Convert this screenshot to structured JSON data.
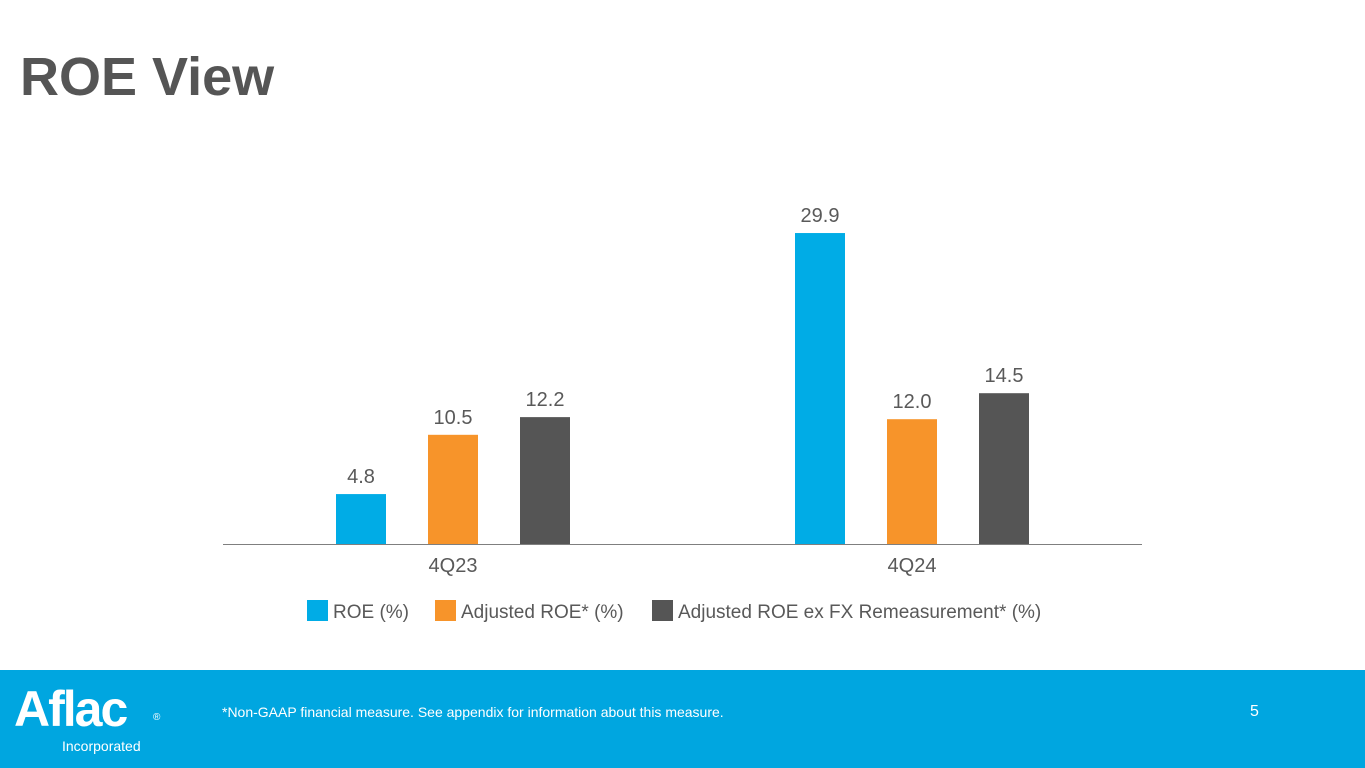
{
  "slide": {
    "title": "ROE View",
    "footnote": "*Non-GAAP financial measure. See appendix for information about this measure.",
    "page_number": "5",
    "logo": {
      "wordmark": "Aflac",
      "registered": "®",
      "subtitle": "Incorporated"
    }
  },
  "colors": {
    "title": "#555555",
    "footer": "#00a6e0",
    "axis": "#7f7f7f",
    "labels": "#595959"
  },
  "chart_data": {
    "type": "bar",
    "title": "",
    "xlabel": "",
    "ylabel": "",
    "categories": [
      "4Q23",
      "4Q24"
    ],
    "ylim": [
      0,
      33
    ],
    "grid": false,
    "legend_position": "bottom",
    "series": [
      {
        "name": "ROE (%)",
        "color": "#00ace6",
        "values": [
          4.8,
          29.9
        ],
        "labels": [
          "4.8",
          "29.9"
        ]
      },
      {
        "name": "Adjusted ROE* (%)",
        "color": "#f7942a",
        "values": [
          10.5,
          12.0
        ],
        "labels": [
          "10.5",
          "12.0"
        ]
      },
      {
        "name": "Adjusted ROE ex FX Remeasurement* (%)",
        "color": "#555555",
        "values": [
          12.2,
          14.5
        ],
        "labels": [
          "12.2",
          "14.5"
        ]
      }
    ]
  }
}
